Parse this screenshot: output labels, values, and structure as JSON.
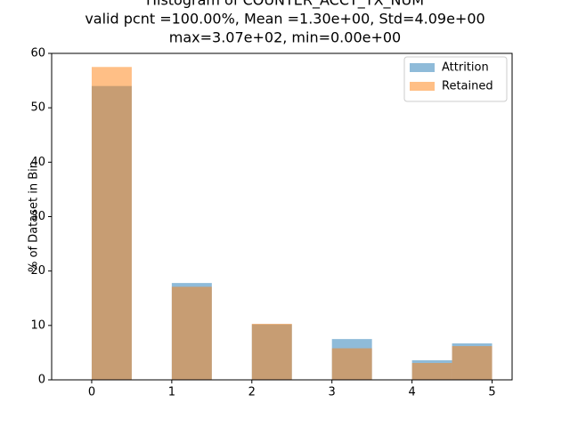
{
  "chart_data": {
    "type": "histogram",
    "title": [
      "Histogram of COUNTER_ACCT_TX_NUM",
      "valid pcnt =100.00%, Mean =1.30e+00, Std=4.09e+00",
      "max=3.07e+02, min=0.00e+00"
    ],
    "ylabel": "% of Dataset in Bin",
    "bins": [
      0,
      0.5,
      1,
      1.5,
      2,
      2.5,
      3,
      3.5,
      4,
      4.5,
      5
    ],
    "series": [
      {
        "name": "Attrition",
        "color": "#1f77b4",
        "values": [
          54,
          0,
          17.8,
          0,
          10.2,
          0,
          7.5,
          0,
          3.6,
          6.7
        ]
      },
      {
        "name": "Retained",
        "color": "#ff7f0e",
        "values": [
          57.5,
          0,
          17.1,
          0,
          10.3,
          0,
          5.8,
          0,
          3.1,
          6.2
        ]
      }
    ],
    "alpha": 0.5,
    "xlim": [
      -0.5,
      5.25
    ],
    "xticks": [
      0,
      1,
      2,
      3,
      4,
      5
    ],
    "ylim": [
      0,
      60
    ],
    "yticks": [
      0,
      10,
      20,
      30,
      40,
      50,
      60
    ],
    "legend": "upper right"
  }
}
